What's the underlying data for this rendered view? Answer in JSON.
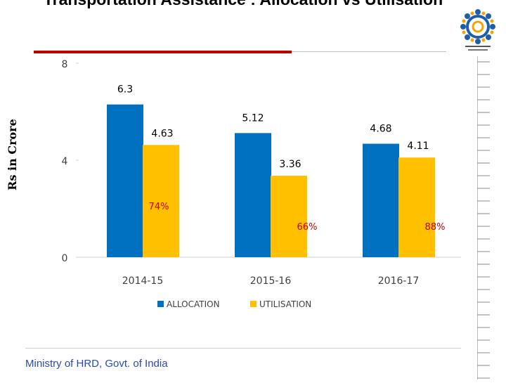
{
  "slide": {
    "title": "Transportation Assistance : Allocation vs Utilisation",
    "footer": "Ministry of HRD, Govt. of India"
  },
  "chart_data": {
    "type": "bar",
    "categories": [
      "2014-15",
      "2015-16",
      "2016-17"
    ],
    "series": [
      {
        "name": "ALLOCATION",
        "values": [
          6.3,
          5.12,
          4.68
        ],
        "color": "#0070c0"
      },
      {
        "name": "UTILISATION",
        "values": [
          4.63,
          3.36,
          4.11
        ],
        "color": "#ffc000"
      }
    ],
    "value_labels": {
      "ALLOCATION": [
        "6.3",
        "5.12",
        "4.68"
      ],
      "UTILISATION": [
        "4.63",
        "3.36",
        "4.11"
      ]
    },
    "annotations": [
      "74%",
      "66%",
      "88%"
    ],
    "annotation_colors": [
      "#c00000",
      "#c00000",
      "#c00000"
    ],
    "y_ticks": [
      "0",
      "4",
      "8"
    ],
    "ylim": [
      0,
      8
    ],
    "ylabel": "Rs in Crore",
    "xlabel": "",
    "legend_position": "bottom",
    "grid": false
  }
}
